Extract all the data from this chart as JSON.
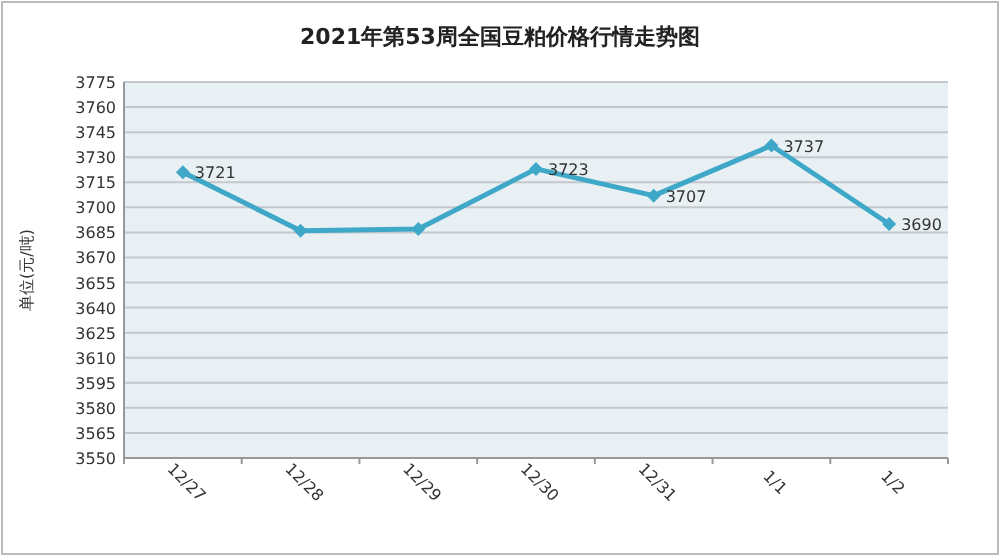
{
  "chart_data": {
    "type": "line",
    "title": "2021年第53周全国豆粕价格行情走势图",
    "ylabel": "单位(元/吨)",
    "categories": [
      "12/27",
      "12/28",
      "12/29",
      "12/30",
      "12/31",
      "1/1",
      "1/2"
    ],
    "series": [
      {
        "color": "#3fa8c8",
        "values": [
          3721,
          3686,
          3687,
          3723,
          3707,
          3737,
          3690
        ],
        "value_labels": [
          "3721",
          null,
          null,
          "3723",
          "3707",
          "3737",
          "3690"
        ]
      }
    ],
    "ylim": [
      3550,
      3775
    ],
    "yticks": [
      3550,
      3565,
      3580,
      3595,
      3610,
      3625,
      3640,
      3655,
      3670,
      3685,
      3700,
      3715,
      3730,
      3745,
      3760,
      3775
    ],
    "grid": "y",
    "marker": "diamond"
  }
}
